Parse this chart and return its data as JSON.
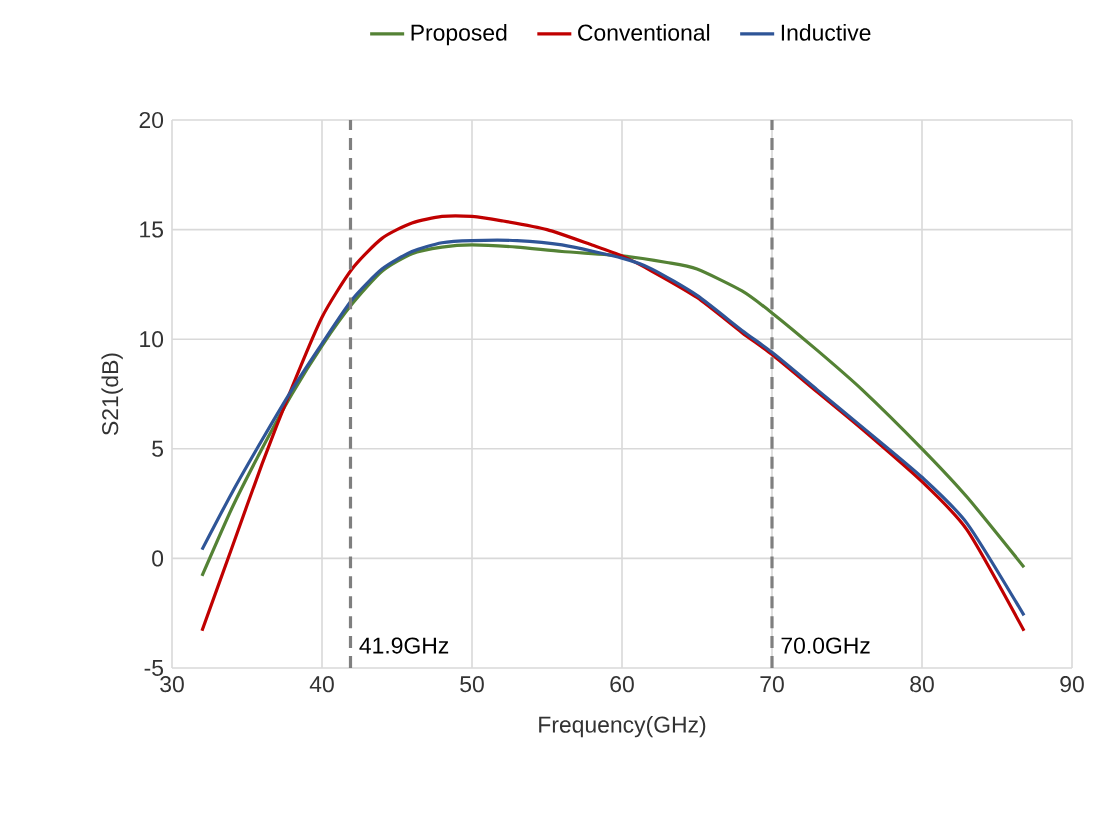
{
  "chart_data": {
    "type": "line",
    "xlabel": "Frequency(GHz)",
    "ylabel": "S21(dB)",
    "xlim": [
      30,
      90
    ],
    "xticks": [
      30,
      40,
      50,
      60,
      70,
      80,
      90
    ],
    "ylim": [
      -5,
      20
    ],
    "yticks": [
      -5,
      0,
      5,
      10,
      15,
      20
    ],
    "grid": true,
    "legend": "top",
    "line_style": "solid",
    "marker": "none",
    "series": [
      {
        "name": "Proposed",
        "color": "#548235",
        "x": [
          32,
          34,
          36,
          38,
          40,
          42,
          44,
          46,
          48,
          50,
          53,
          56,
          60,
          63,
          65,
          68,
          70,
          73,
          76,
          80,
          83,
          86.8
        ],
        "values": [
          -0.8,
          2.3,
          5.0,
          7.5,
          9.7,
          11.6,
          13.1,
          13.9,
          14.2,
          14.3,
          14.2,
          14.0,
          13.8,
          13.5,
          13.2,
          12.2,
          11.2,
          9.5,
          7.7,
          5.0,
          2.8,
          -0.4
        ]
      },
      {
        "name": "Conventional",
        "color": "#c00000",
        "x": [
          32,
          34,
          36,
          38,
          40,
          42,
          44,
          46,
          48,
          50,
          52,
          55,
          58,
          60,
          62,
          65,
          68,
          70,
          73,
          76,
          80,
          83,
          86.8
        ],
        "values": [
          -3.3,
          0.5,
          4.3,
          7.8,
          11.0,
          13.2,
          14.6,
          15.3,
          15.6,
          15.6,
          15.4,
          15.0,
          14.3,
          13.8,
          13.1,
          11.9,
          10.3,
          9.3,
          7.6,
          5.9,
          3.5,
          1.3,
          -3.3
        ]
      },
      {
        "name": "Inductive",
        "color": "#2f5597",
        "x": [
          32,
          34,
          36,
          38,
          40,
          42,
          44,
          46,
          48,
          50,
          53,
          56,
          60,
          62,
          65,
          68,
          70,
          73,
          76,
          80,
          83,
          86.8
        ],
        "values": [
          0.4,
          3.0,
          5.4,
          7.7,
          9.8,
          11.8,
          13.2,
          14.0,
          14.4,
          14.5,
          14.5,
          14.3,
          13.7,
          13.2,
          12.0,
          10.4,
          9.4,
          7.7,
          6.0,
          3.7,
          1.6,
          -2.6
        ]
      }
    ],
    "ref_lines": [
      {
        "axis": "x",
        "value": 41.9,
        "label": "41.9GHz",
        "color": "#7f7f7f",
        "line_style": "dashed"
      },
      {
        "axis": "x",
        "value": 70.0,
        "label": "70.0GHz",
        "color": "#7f7f7f",
        "line_style": "dashed"
      }
    ]
  }
}
